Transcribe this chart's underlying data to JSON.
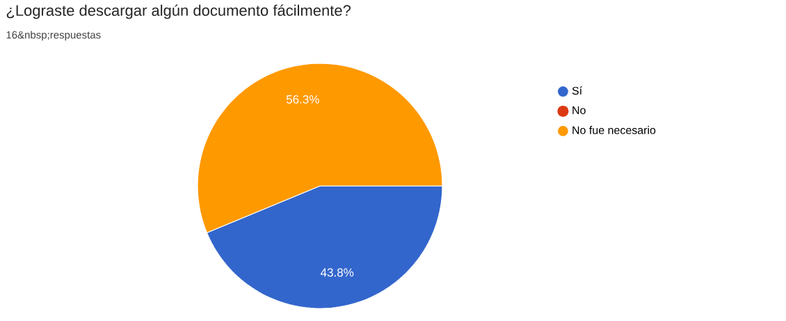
{
  "chart_data": {
    "type": "pie",
    "title": "¿Lograste descargar algún documento fácilmente?",
    "subtitle": "16&nbsp;respuestas",
    "categories": [
      "Sí",
      "No",
      "No fue necesario"
    ],
    "values": [
      43.8,
      0,
      56.3
    ],
    "value_labels": [
      "43.8%",
      null,
      "56.3%"
    ],
    "colors": [
      "#3366cc",
      "#dc3912",
      "#ff9900"
    ],
    "legend": "right"
  }
}
